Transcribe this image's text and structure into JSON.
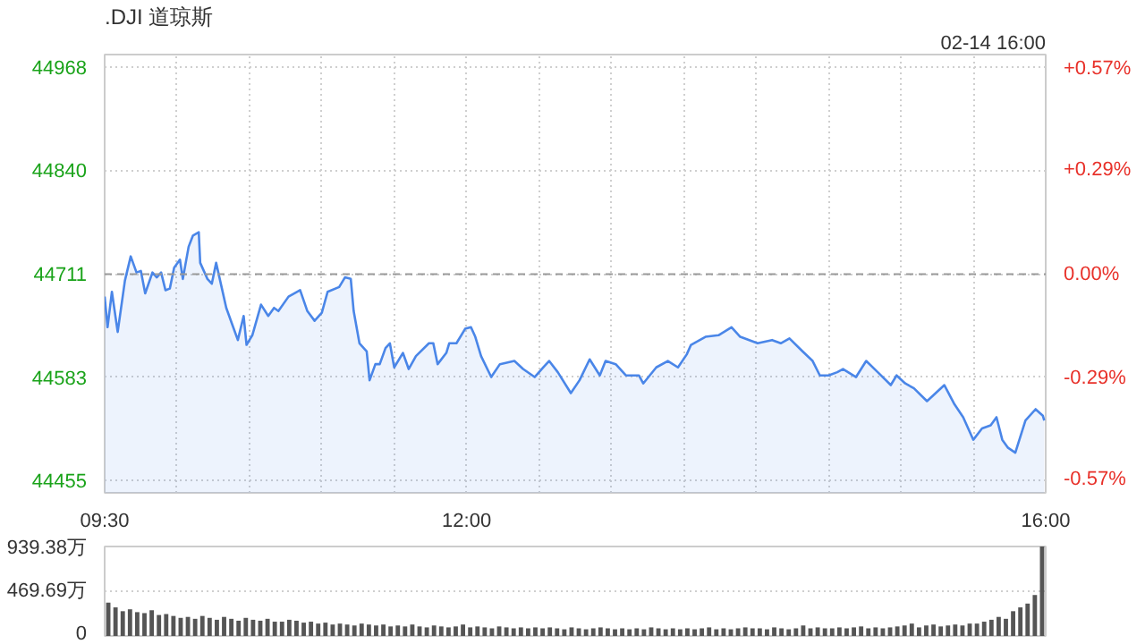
{
  "chart_data": [
    {
      "type": "area",
      "title": ".DJI 道琼斯",
      "annotations": [
        "02-14 16:00"
      ],
      "x": [
        9.5,
        9.52,
        9.55,
        9.59,
        9.64,
        9.68,
        9.72,
        9.75,
        9.78,
        9.83,
        9.86,
        9.89,
        9.92,
        9.95,
        9.98,
        10.02,
        10.04,
        10.08,
        10.11,
        10.15,
        10.16,
        10.21,
        10.24,
        10.27,
        10.31,
        10.34,
        10.38,
        10.42,
        10.46,
        10.48,
        10.52,
        10.58,
        10.63,
        10.67,
        10.7,
        10.77,
        10.85,
        10.9,
        10.95,
        11.0,
        11.04,
        11.12,
        11.16,
        11.2,
        11.22,
        11.26,
        11.31,
        11.33,
        11.37,
        11.4,
        11.44,
        11.47,
        11.5,
        11.56,
        11.6,
        11.65,
        11.74,
        11.77,
        11.8,
        11.86,
        11.88,
        11.93,
        11.99,
        12.03,
        12.06,
        12.1,
        12.17,
        12.23,
        12.33,
        12.39,
        12.47,
        12.53,
        12.57,
        12.63,
        12.72,
        12.78,
        12.85,
        12.92,
        12.96,
        13.03,
        13.1,
        13.19,
        13.22,
        13.31,
        13.39,
        13.46,
        13.52,
        13.55,
        13.65,
        13.74,
        13.83,
        13.89,
        14.01,
        14.11,
        14.17,
        14.23,
        14.32,
        14.39,
        14.44,
        14.5,
        14.56,
        14.6,
        14.69,
        14.76,
        14.84,
        14.93,
        14.97,
        15.03,
        15.09,
        15.18,
        15.3,
        15.37,
        15.43,
        15.5,
        15.56,
        15.62,
        15.66,
        15.7,
        15.74,
        15.79,
        15.86,
        15.93,
        15.98,
        15.99
      ],
      "series": [
        {
          "color": "#4a86e8",
          "values": [
            44683,
            44645,
            44689,
            44639,
            44703,
            44733,
            44713,
            44715,
            44687,
            44713,
            44707,
            44713,
            44691,
            44693,
            44719,
            44729,
            44705,
            44745,
            44759,
            44763,
            44725,
            44705,
            44699,
            44725,
            44693,
            44669,
            44649,
            44629,
            44659,
            44623,
            44635,
            44673,
            44659,
            44669,
            44665,
            44683,
            44691,
            44665,
            44653,
            44663,
            44689,
            44695,
            44707,
            44705,
            44665,
            44625,
            44615,
            44579,
            44599,
            44599,
            44619,
            44625,
            44595,
            44613,
            44593,
            44609,
            44625,
            44625,
            44599,
            44613,
            44625,
            44625,
            44643,
            44645,
            44633,
            44609,
            44583,
            44599,
            44603,
            44593,
            44583,
            44595,
            44603,
            44589,
            44563,
            44579,
            44605,
            44585,
            44603,
            44599,
            44585,
            44585,
            44575,
            44595,
            44603,
            44595,
            44611,
            44623,
            44633,
            44635,
            44645,
            44633,
            44625,
            44629,
            44625,
            44631,
            44615,
            44603,
            44585,
            44585,
            44589,
            44593,
            44583,
            44603,
            44589,
            44573,
            44585,
            44575,
            44569,
            44553,
            44573,
            44549,
            44533,
            44505,
            44519,
            44523,
            44533,
            44505,
            44495,
            44489,
            44529,
            44543,
            44535,
            44529
          ]
        }
      ],
      "xlim": [
        9.5,
        16
      ],
      "xticks": [
        {
          "value": 9.5,
          "label": "09:30"
        },
        {
          "value": 10,
          "label": null
        },
        {
          "value": 10.5,
          "label": null
        },
        {
          "value": 11,
          "label": null
        },
        {
          "value": 11.5,
          "label": null
        },
        {
          "value": 12,
          "label": "12:00"
        },
        {
          "value": 12.5,
          "label": null
        },
        {
          "value": 13,
          "label": null
        },
        {
          "value": 13.5,
          "label": null
        },
        {
          "value": 14,
          "label": null
        },
        {
          "value": 14.5,
          "label": null
        },
        {
          "value": 15,
          "label": null
        },
        {
          "value": 15.5,
          "label": null
        },
        {
          "value": 16,
          "label": "16:00"
        }
      ],
      "ylim": [
        44439,
        44984
      ],
      "yticks": [
        44455,
        44583,
        44711,
        44840,
        44968
      ],
      "y2lim": [
        -0.608,
        0.611
      ],
      "y2ticks": [
        {
          "value": -0.57,
          "label": "-0.57%"
        },
        {
          "value": -0.29,
          "label": "-0.29%"
        },
        {
          "value": 0,
          "label": "0.00%"
        },
        {
          "value": 0.29,
          "label": "+0.29%"
        },
        {
          "value": 0.57,
          "label": "+0.57%"
        }
      ],
      "ref_lines": [
        {
          "axis": "y",
          "value": 44711,
          "color": "#999999",
          "line_style": "dashed"
        }
      ],
      "grid": true
    },
    {
      "type": "bar",
      "categories": [
        null,
        null,
        null,
        null,
        null,
        null,
        null,
        null,
        null,
        null,
        null,
        null,
        null,
        null,
        null,
        null,
        null,
        null,
        null,
        null,
        null,
        null,
        null,
        null,
        null,
        null,
        null,
        null,
        null,
        null,
        null,
        null,
        null,
        null,
        null,
        null,
        null,
        null,
        null,
        null,
        null,
        null,
        null,
        null,
        null,
        null,
        null,
        null,
        null,
        null,
        null,
        null,
        null,
        null,
        null,
        null,
        null,
        null,
        null,
        null,
        null,
        null,
        null,
        null,
        null,
        null,
        null,
        null,
        null,
        null,
        null,
        null,
        null,
        null,
        null,
        null,
        null,
        null,
        null,
        null,
        null,
        null,
        null,
        null,
        null,
        null,
        null,
        null,
        null,
        null,
        null,
        null,
        null,
        null,
        null,
        null,
        null,
        null,
        null,
        null,
        null,
        null,
        null,
        null,
        null,
        null,
        null,
        null,
        null,
        null,
        null,
        null,
        null,
        null,
        null,
        null,
        null,
        null,
        null,
        null,
        null,
        null,
        null,
        null,
        null,
        null,
        null,
        null,
        null,
        null
      ],
      "values": [
        350,
        300,
        260,
        280,
        250,
        240,
        270,
        220,
        230,
        210,
        190,
        200,
        180,
        210,
        190,
        170,
        200,
        180,
        160,
        190,
        170,
        160,
        180,
        150,
        150,
        170,
        160,
        140,
        150,
        130,
        140,
        120,
        130,
        120,
        110,
        130,
        120,
        110,
        120,
        100,
        110,
        100,
        120,
        100,
        90,
        110,
        100,
        90,
        100,
        120,
        90,
        100,
        90,
        80,
        100,
        90,
        80,
        90,
        80,
        90,
        80,
        90,
        80,
        70,
        90,
        80,
        70,
        80,
        90,
        80,
        70,
        80,
        70,
        80,
        70,
        90,
        80,
        70,
        80,
        70,
        80,
        70,
        80,
        90,
        70,
        80,
        70,
        80,
        90,
        80,
        80,
        70,
        90,
        80,
        70,
        80,
        110,
        80,
        90,
        80,
        80,
        90,
        80,
        90,
        100,
        80,
        90,
        80,
        90,
        100,
        110,
        130,
        90,
        110,
        120,
        100,
        110,
        120,
        110,
        130,
        130,
        150,
        170,
        200,
        180,
        260,
        300,
        340,
        430,
        939.38
      ],
      "color": "#555555",
      "ylim": [
        0,
        939.38
      ],
      "yticks": [
        0,
        {
          "value": 469.69,
          "label": "469.69万"
        },
        {
          "value": 939.38,
          "label": "939.38万"
        }
      ],
      "grid": "y",
      "tick_labels": "y"
    }
  ]
}
